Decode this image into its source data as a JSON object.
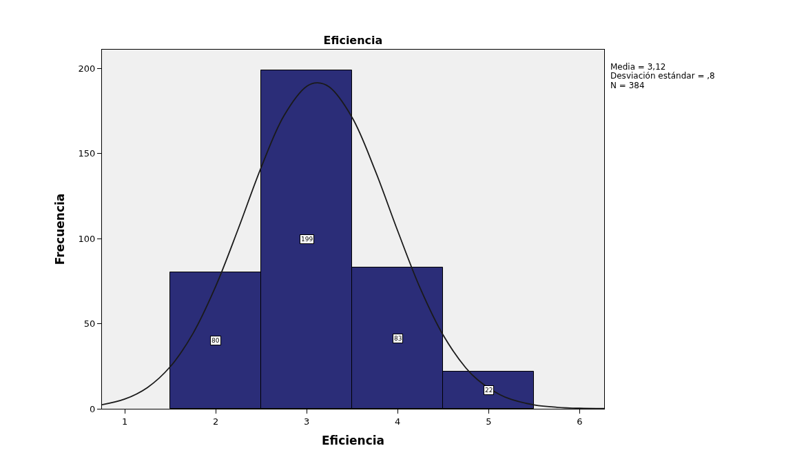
{
  "chart_data": {
    "type": "histogram",
    "title": "Eficiencia",
    "xlabel": "Eficiencia",
    "ylabel": "Frecuencia",
    "bins": [
      1.5,
      2.5,
      3.5,
      4.5,
      5.5
    ],
    "values": [
      80,
      199,
      83,
      22
    ],
    "color": "#2b2d78",
    "value_labels": [
      "80",
      "199",
      "83",
      "22"
    ],
    "series": [
      {
        "type": "line",
        "color": "#1a1a1a",
        "x": [
          0.75,
          1.0,
          1.25,
          1.5,
          1.75,
          2.0,
          2.25,
          2.5,
          2.75,
          3.0,
          3.12,
          3.25,
          3.5,
          3.75,
          4.0,
          4.25,
          4.5,
          4.75,
          4.88,
          5.12,
          5.25,
          5.5,
          5.75,
          6.0,
          6.27
        ],
        "values": [
          2.4,
          5.7,
          12.5,
          24.7,
          44.2,
          71.9,
          106.0,
          141.8,
          172.1,
          189.4,
          191.5,
          189.0,
          171.1,
          140.4,
          104.6,
          70.6,
          43.3,
          24.0,
          17.0,
          8.4,
          5.5,
          2.3,
          0.9,
          0.3,
          0.1
        ]
      }
    ],
    "xlim": [
      0.75,
      6.27
    ],
    "xticks": [
      1,
      2,
      3,
      4,
      5,
      6
    ],
    "ylim": [
      0,
      211
    ],
    "yticks": [
      0,
      50,
      100,
      150,
      200
    ],
    "grid": false,
    "annotations": [
      "Media = 3,12",
      "Desviación estándar = ,8",
      "N = 384"
    ]
  }
}
